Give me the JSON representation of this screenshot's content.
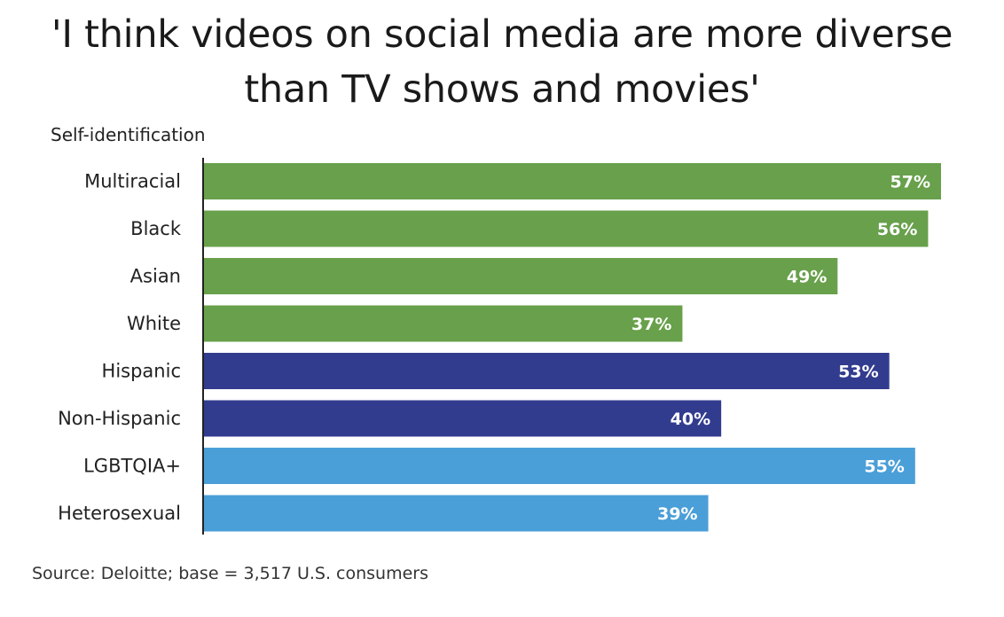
{
  "chart_data": {
    "type": "bar",
    "orientation": "horizontal",
    "title": "'I think videos on social media are more diverse\nthan TV shows and movies'",
    "ylabel": "Self-identification",
    "categories": [
      "Multiracial",
      "Black",
      "Asian",
      "White",
      "Hispanic",
      "Non-Hispanic",
      "LGBTQIA+",
      "Heterosexual"
    ],
    "values": [
      57,
      56,
      49,
      37,
      53,
      40,
      55,
      39
    ],
    "value_labels": [
      "57%",
      "56%",
      "49%",
      "37%",
      "53%",
      "40%",
      "55%",
      "39%"
    ],
    "bar_colors": [
      "#68a04b",
      "#68a04b",
      "#68a04b",
      "#68a04b",
      "#323c8f",
      "#323c8f",
      "#4a9fd8",
      "#4a9fd8"
    ],
    "unit": "%",
    "xlim": [
      0,
      57
    ],
    "grid": false,
    "legend": "none"
  },
  "source": "Source: Deloitte; base = 3,517 U.S. consumers"
}
